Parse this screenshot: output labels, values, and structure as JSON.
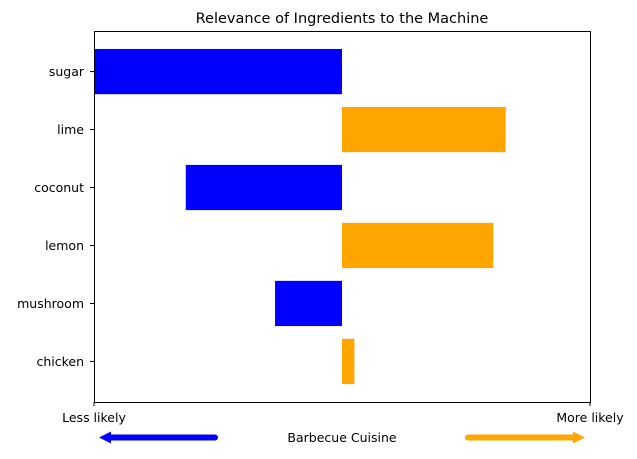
{
  "chart_data": {
    "type": "bar",
    "orientation": "horizontal",
    "title": "Relevance of Ingredients to the Machine",
    "xlabel": "Barbecue Cuisine",
    "ylabel": "",
    "xlim": [
      -1,
      1
    ],
    "x_ticks": [
      {
        "value": -1,
        "label": "Less likely"
      },
      {
        "value": 1,
        "label": "More likely"
      }
    ],
    "categories": [
      "sugar",
      "lime",
      "coconut",
      "lemon",
      "mushroom",
      "chicken"
    ],
    "values": [
      -1.0,
      0.66,
      -0.63,
      0.61,
      -0.27,
      0.05
    ],
    "colors": {
      "negative": "#0000ff",
      "positive": "#ffa500"
    },
    "legend_arrows": {
      "left_color": "#0000ff",
      "right_color": "#ffa500"
    },
    "grid": false
  }
}
